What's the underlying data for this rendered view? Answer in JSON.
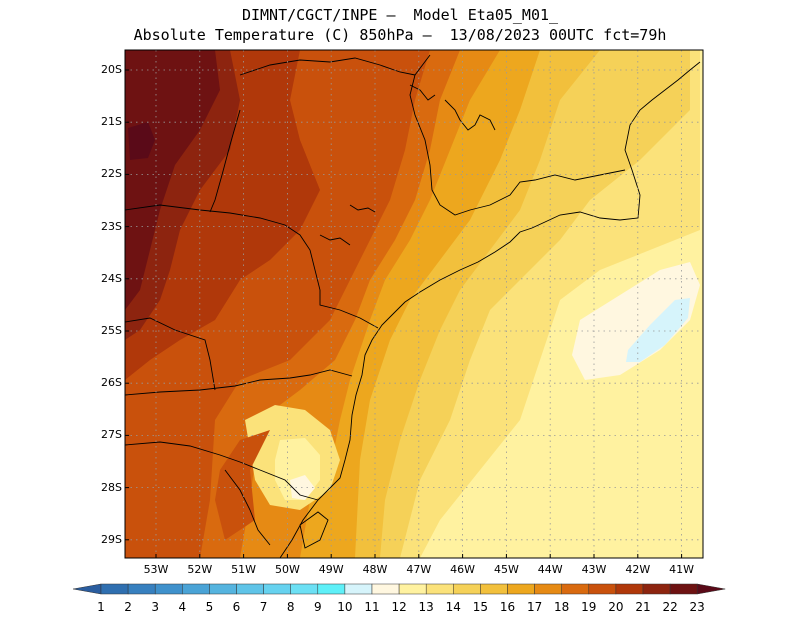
{
  "title": {
    "line1": "DIMNT/CGCT/INPE —  Model Eta05_M01_",
    "line2": "Absolute Temperature (C) 850hPa —  13/08/2023 00UTC fct=79h"
  },
  "axes": {
    "lat_labels": [
      "20S",
      "21S",
      "22S",
      "23S",
      "24S",
      "25S",
      "26S",
      "27S",
      "28S",
      "29S"
    ],
    "lon_labels": [
      "53W",
      "52W",
      "51W",
      "50W",
      "49W",
      "48W",
      "47W",
      "46W",
      "45W",
      "44W",
      "43W",
      "42W",
      "41W"
    ]
  },
  "colorbar": {
    "labels": [
      "1",
      "2",
      "3",
      "4",
      "5",
      "6",
      "7",
      "8",
      "9",
      "10",
      "11",
      "12",
      "13",
      "14",
      "15",
      "16",
      "17",
      "18",
      "19",
      "20",
      "21",
      "22",
      "23"
    ],
    "colors": [
      "#2a5d9f",
      "#2f6fb0",
      "#3780bf",
      "#3f91cc",
      "#4aa3d6",
      "#55b4df",
      "#5fc4e8",
      "#66d2ef",
      "#6ce0f4",
      "#5ef0f8",
      "#d6f4fb",
      "#fff7e0",
      "#fff2a0",
      "#fbe27a",
      "#f5d158",
      "#f2c03c",
      "#eda71e",
      "#e68a14",
      "#d96a0f",
      "#c9510c",
      "#b0380a",
      "#8d240f",
      "#6e1212",
      "#5a0a18"
    ]
  },
  "map": {
    "bands": [
      {
        "color": "#5a0a18",
        "label": "23"
      },
      {
        "color": "#6e1212",
        "label": "22"
      },
      {
        "color": "#8d240f",
        "label": "21"
      },
      {
        "color": "#b0380a",
        "label": "20"
      },
      {
        "color": "#c9510c",
        "label": "19"
      },
      {
        "color": "#d96a0f",
        "label": "18"
      },
      {
        "color": "#e68a14",
        "label": "17"
      },
      {
        "color": "#eda71e",
        "label": "16"
      },
      {
        "color": "#f2c03c",
        "label": "15"
      },
      {
        "color": "#f5d158",
        "label": "14"
      },
      {
        "color": "#fbe27a",
        "label": "13"
      },
      {
        "color": "#fff2a0",
        "label": "12"
      },
      {
        "color": "#fff7e0",
        "label": "11"
      },
      {
        "color": "#d6f4fb",
        "label": "10"
      }
    ]
  }
}
